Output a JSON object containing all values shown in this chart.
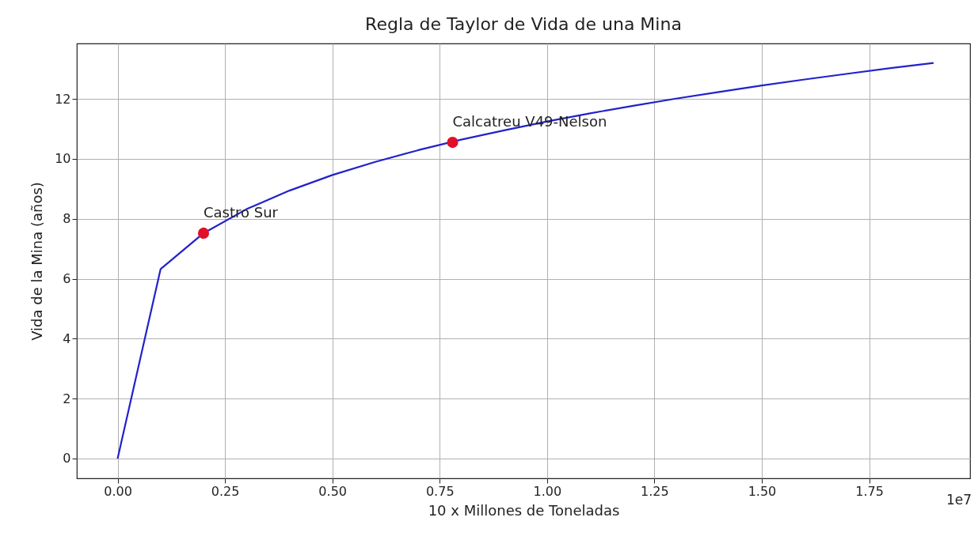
{
  "chart_data": {
    "type": "line",
    "title": "Regla de Taylor de Vida de una Mina",
    "xlabel": "10 x Millones de Toneladas",
    "ylabel": "Vida de la Mina (años)",
    "x": [
      0,
      0.1,
      0.2,
      0.3,
      0.4,
      0.5,
      0.6,
      0.7,
      0.8,
      0.9,
      1.0,
      1.1,
      1.2,
      1.3,
      1.4,
      1.5,
      1.6,
      1.7,
      1.8,
      1.9
    ],
    "series": [
      {
        "color": "#2222cc",
        "marker": "none",
        "values": [
          0,
          6.32,
          7.52,
          8.32,
          8.94,
          9.46,
          9.9,
          10.29,
          10.64,
          10.95,
          11.25,
          11.52,
          11.77,
          12.01,
          12.23,
          12.45,
          12.65,
          12.84,
          13.03,
          13.2
        ]
      },
      {
        "type": "scatter",
        "color": "#e0102a",
        "marker": "circle",
        "x": [
          0.2,
          0.78
        ],
        "values": [
          7.52,
          10.55
        ]
      }
    ],
    "annotations": [
      {
        "text": "Castro Sur",
        "x": 0.2,
        "y": 7.52
      },
      {
        "text": "Calcatreu V49-Nelson",
        "x": 0.78,
        "y": 10.55
      },
      "1e7"
    ],
    "xlim": [
      -0.095,
      1.985
    ],
    "ylim": [
      -0.66,
      13.85
    ],
    "xticks": [
      {
        "value": 0,
        "label": "0.00"
      },
      0.25,
      {
        "value": 0.5,
        "label": "0.50"
      },
      0.75,
      {
        "value": 1,
        "label": "1.00"
      },
      1.25,
      {
        "value": 1.5,
        "label": "1.50"
      },
      1.75
    ],
    "yticks": [
      0,
      2,
      4,
      6,
      8,
      10,
      12
    ],
    "grid": true
  }
}
